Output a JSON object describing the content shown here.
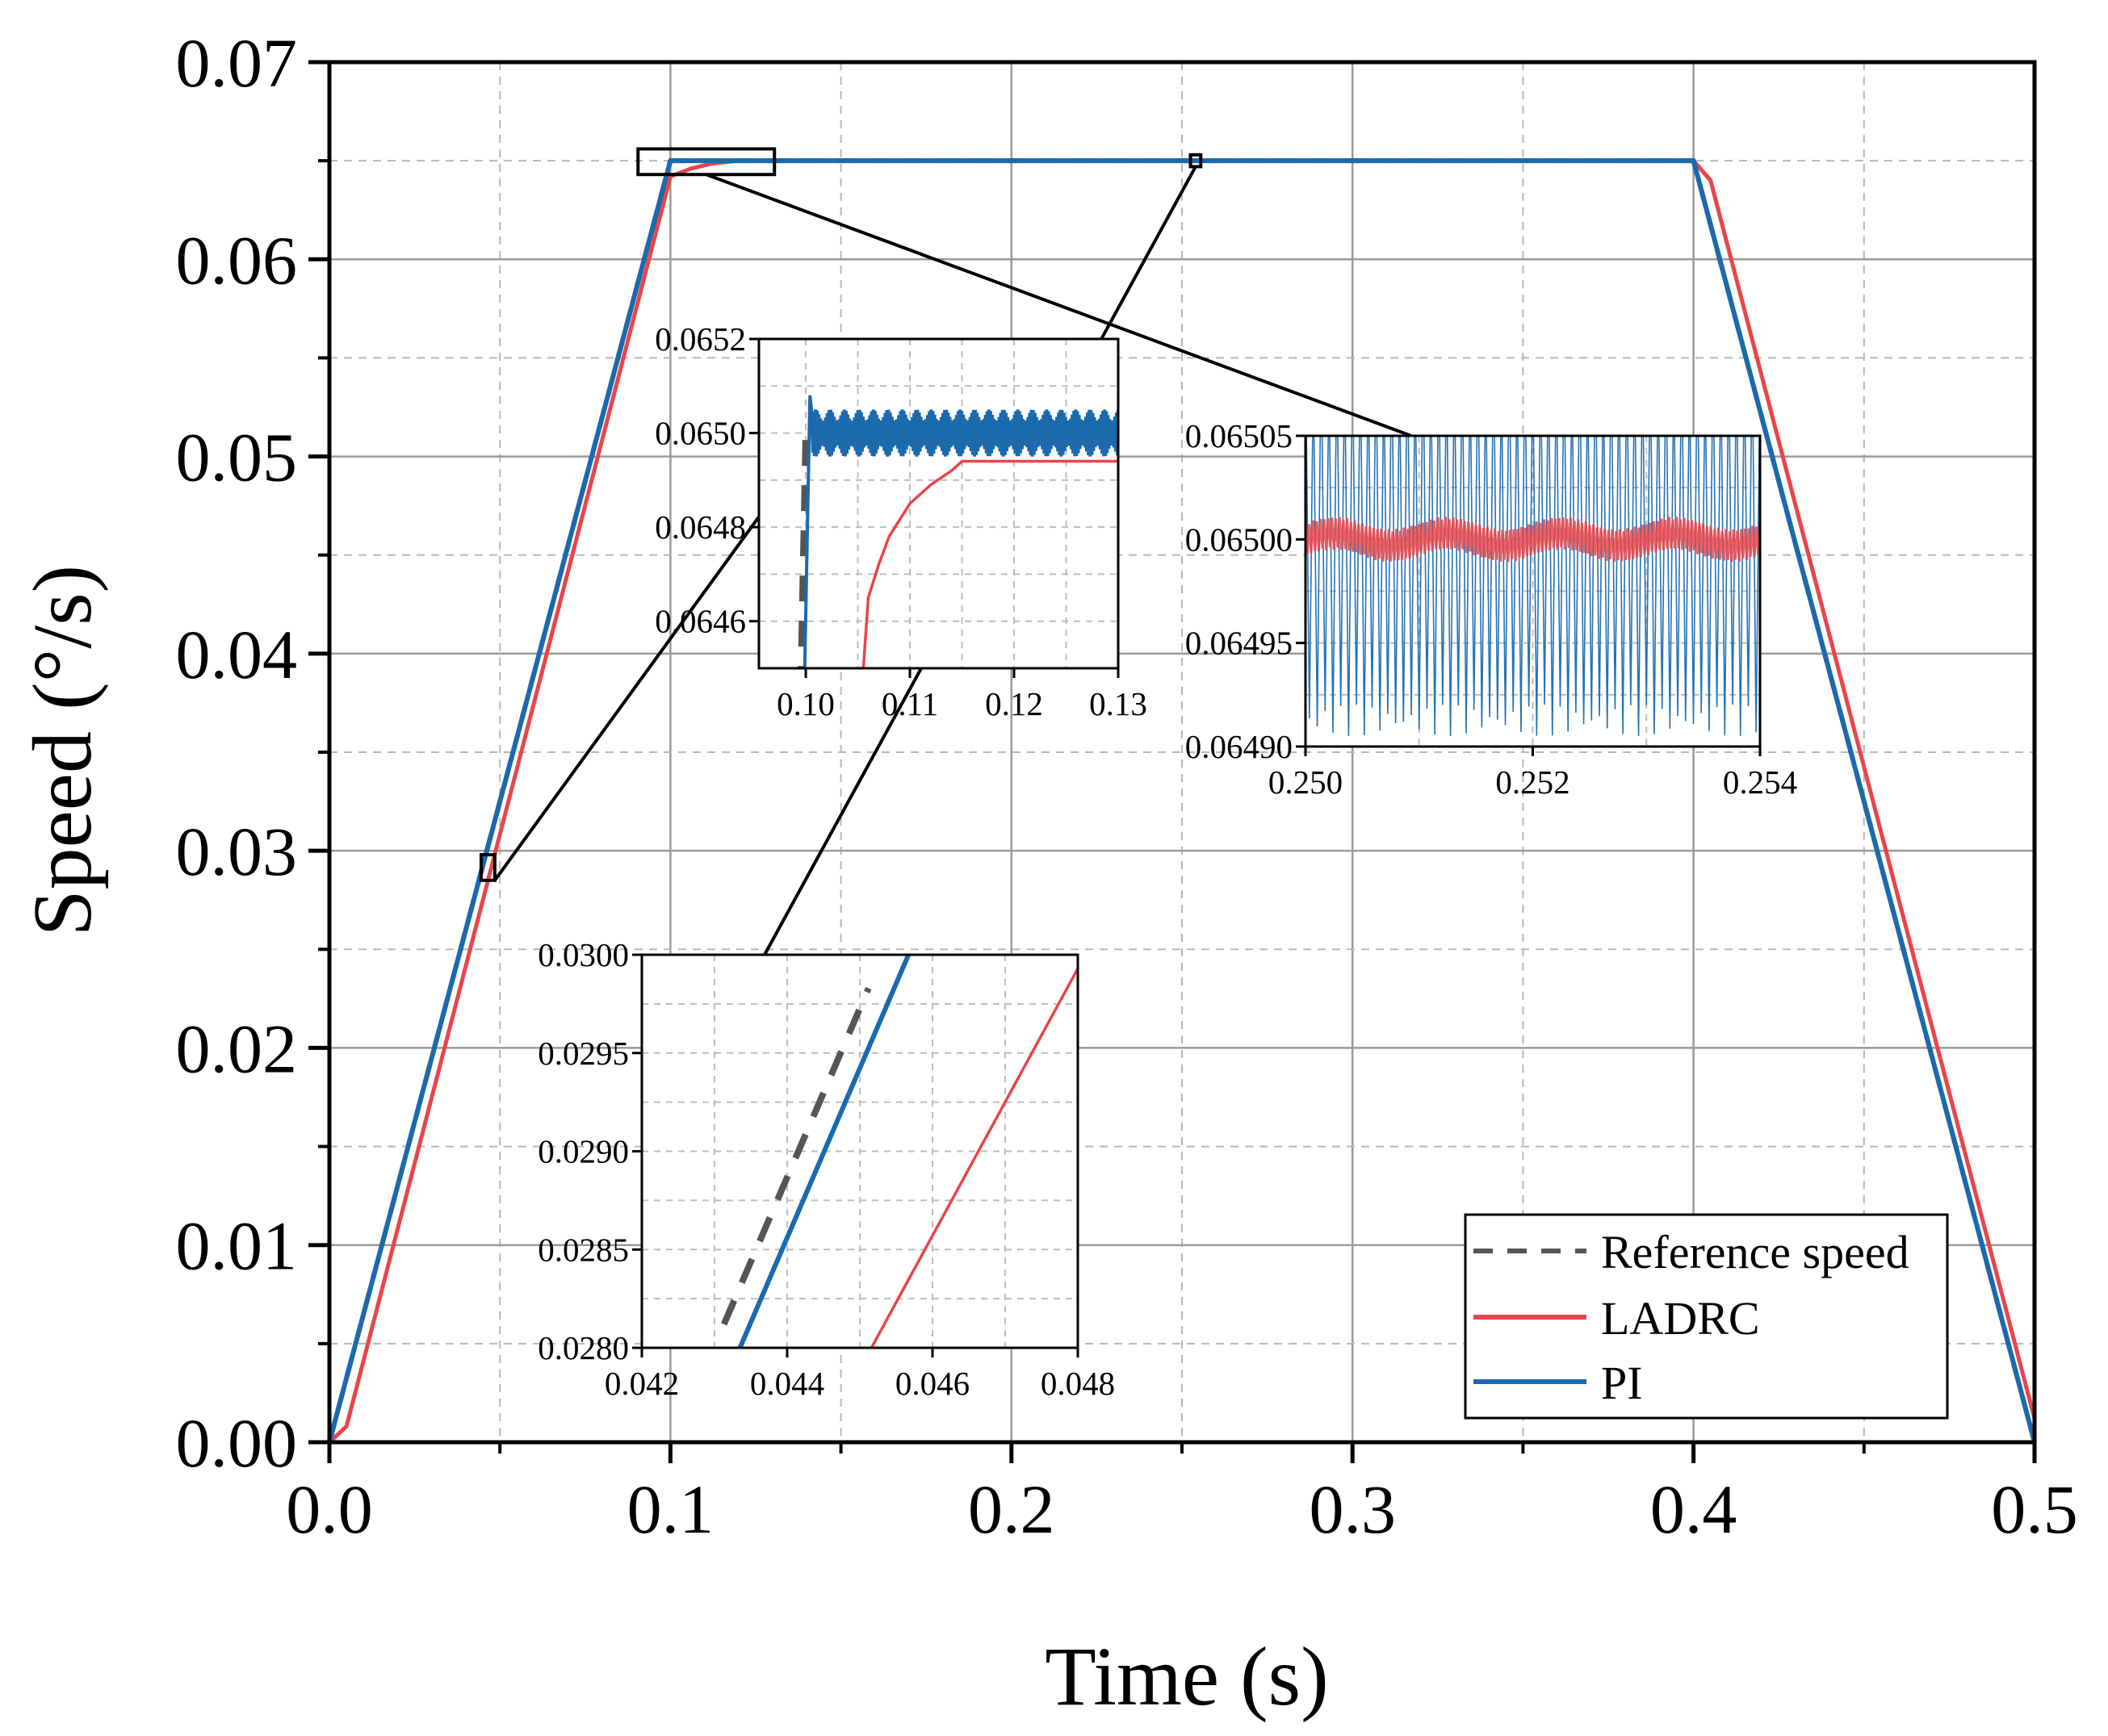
{
  "chart_data": {
    "type": "line",
    "xlabel": "Time (s)",
    "ylabel": "Speed (°/s)",
    "xlim": [
      0.0,
      0.5
    ],
    "ylim": [
      0.0,
      0.07
    ],
    "grid": true,
    "legend_position": "bottom-right",
    "xticks": [
      "0.0",
      "0.1",
      "0.2",
      "0.3",
      "0.4",
      "0.5"
    ],
    "yticks": [
      "0.00",
      "0.01",
      "0.02",
      "0.03",
      "0.04",
      "0.05",
      "0.06",
      "0.07"
    ],
    "colors": {
      "reference": "#555555",
      "ladrc": "#e8454a",
      "pi": "#1a6aad"
    },
    "series": [
      {
        "key": "reference",
        "name": "Reference speed",
        "style": "dashed",
        "x": [
          0.0,
          0.1,
          0.4,
          0.5
        ],
        "y": [
          0.0,
          0.065,
          0.065,
          0.0
        ]
      },
      {
        "key": "ladrc",
        "name": "LADRC",
        "style": "solid",
        "x": [
          0.0,
          0.005,
          0.1,
          0.106,
          0.112,
          0.12,
          0.4,
          0.405,
          0.5
        ],
        "y": [
          0.0,
          0.0008,
          0.0642,
          0.0646,
          0.06485,
          0.065,
          0.065,
          0.064,
          0.0012
        ]
      },
      {
        "key": "pi",
        "name": "PI",
        "style": "solid",
        "x": [
          0.0,
          0.1,
          0.4,
          0.5
        ],
        "y": [
          0.0,
          0.065,
          0.065,
          0.0
        ]
      }
    ],
    "zoom_boxes": [
      {
        "x": [
          0.0445,
          0.0485
        ],
        "y": [
          0.0285,
          0.0298
        ]
      },
      {
        "x": [
          0.0905,
          0.1305
        ],
        "y": [
          0.0643,
          0.0656
        ]
      },
      {
        "x": [
          0.2525,
          0.2555
        ],
        "y": [
          0.0647,
          0.0653
        ]
      }
    ],
    "insets": [
      {
        "id": "inset-start",
        "xlim": [
          0.0955,
          0.13
        ],
        "ylim": [
          0.0645,
          0.0652
        ],
        "xticks": [
          "0.10",
          "0.11",
          "0.12",
          "0.13"
        ],
        "yticks": [
          "0.0646",
          "0.0648",
          "0.0650",
          "0.0652"
        ],
        "series": [
          {
            "key": "reference",
            "x": [
              0.0995,
              0.1
            ],
            "y": [
              0.06445,
              0.065
            ]
          },
          {
            "key": "pi",
            "x": [
              0.0999,
              0.1004,
              0.1006,
              0.13
            ],
            "y": [
              0.0645,
              0.06508,
              0.065,
              0.065
            ],
            "band": 5e-05
          },
          {
            "key": "ladrc",
            "x": [
              0.1055,
              0.106,
              0.107,
              0.108,
              0.11,
              0.112,
              0.114,
              0.115,
              0.13
            ],
            "y": [
              0.06449,
              0.06465,
              0.06472,
              0.06478,
              0.06485,
              0.06489,
              0.06492,
              0.06494,
              0.06494
            ]
          }
        ]
      },
      {
        "id": "inset-steady",
        "xlim": [
          0.25,
          0.254
        ],
        "ylim": [
          0.0649,
          0.06505
        ],
        "xticks": [
          "0.250",
          "0.252",
          "0.254"
        ],
        "yticks": [
          "0.06490",
          "0.06495",
          "0.06500",
          "0.06505"
        ],
        "series": [
          {
            "key": "pi",
            "center": 0.065,
            "amplitude": 9.5e-05,
            "cycles": 58
          },
          {
            "key": "ladrc",
            "center": 0.065,
            "amplitude": 8e-06,
            "cycles": 120,
            "wave_amplitude": 3e-06,
            "wave_cycles": 4
          }
        ]
      },
      {
        "id": "inset-ramp",
        "xlim": [
          0.042,
          0.048
        ],
        "ylim": [
          0.028,
          0.03
        ],
        "xticks": [
          "0.042",
          "0.044",
          "0.046",
          "0.048"
        ],
        "yticks": [
          "0.0280",
          "0.0285",
          "0.0290",
          "0.0295",
          "0.0300"
        ],
        "series": [
          {
            "key": "reference",
            "x": [
              0.04313,
              0.04512
            ],
            "y": [
              0.02812,
              0.02983
            ]
          },
          {
            "key": "pi",
            "x": [
              0.04335,
              0.04567
            ],
            "y": [
              0.028,
              0.03
            ]
          },
          {
            "key": "ladrc",
            "x": [
              0.04516,
              0.048
            ],
            "y": [
              0.028,
              0.02993
            ]
          }
        ]
      }
    ]
  }
}
